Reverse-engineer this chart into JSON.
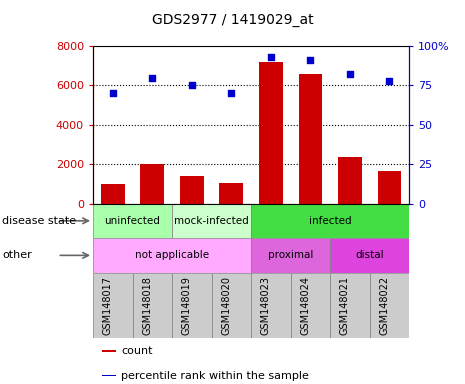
{
  "title": "GDS2977 / 1419029_at",
  "samples": [
    "GSM148017",
    "GSM148018",
    "GSM148019",
    "GSM148020",
    "GSM148023",
    "GSM148024",
    "GSM148021",
    "GSM148022"
  ],
  "counts": [
    1000,
    2000,
    1400,
    1050,
    7200,
    6600,
    2350,
    1650
  ],
  "percentiles": [
    70,
    80,
    75,
    70,
    93,
    91,
    82,
    78
  ],
  "count_color": "#CC0000",
  "percentile_color": "#0000CC",
  "ylim_left": [
    0,
    8000
  ],
  "ylim_right": [
    0,
    100
  ],
  "yticks_left": [
    0,
    2000,
    4000,
    6000,
    8000
  ],
  "yticks_right": [
    0,
    25,
    50,
    75,
    100
  ],
  "ytick_labels_left": [
    "0",
    "2000",
    "4000",
    "6000",
    "8000"
  ],
  "ytick_labels_right": [
    "0",
    "25",
    "50",
    "75",
    "100%"
  ],
  "disease_state_groups": [
    {
      "label": "uninfected",
      "start": 0,
      "end": 2,
      "color": "#AAFFAA"
    },
    {
      "label": "mock-infected",
      "start": 2,
      "end": 4,
      "color": "#CCFFCC"
    },
    {
      "label": "infected",
      "start": 4,
      "end": 8,
      "color": "#44DD44"
    }
  ],
  "other_groups": [
    {
      "label": "not applicable",
      "start": 0,
      "end": 4,
      "color": "#FFAAFF"
    },
    {
      "label": "proximal",
      "start": 4,
      "end": 6,
      "color": "#DD66DD"
    },
    {
      "label": "distal",
      "start": 6,
      "end": 8,
      "color": "#DD44DD"
    }
  ],
  "row_labels": [
    "disease state",
    "other"
  ],
  "legend_count_label": "count",
  "legend_pct_label": "percentile rank within the sample",
  "sample_tick_bg": "#CCCCCC",
  "plot_bg": "#FFFFFF"
}
